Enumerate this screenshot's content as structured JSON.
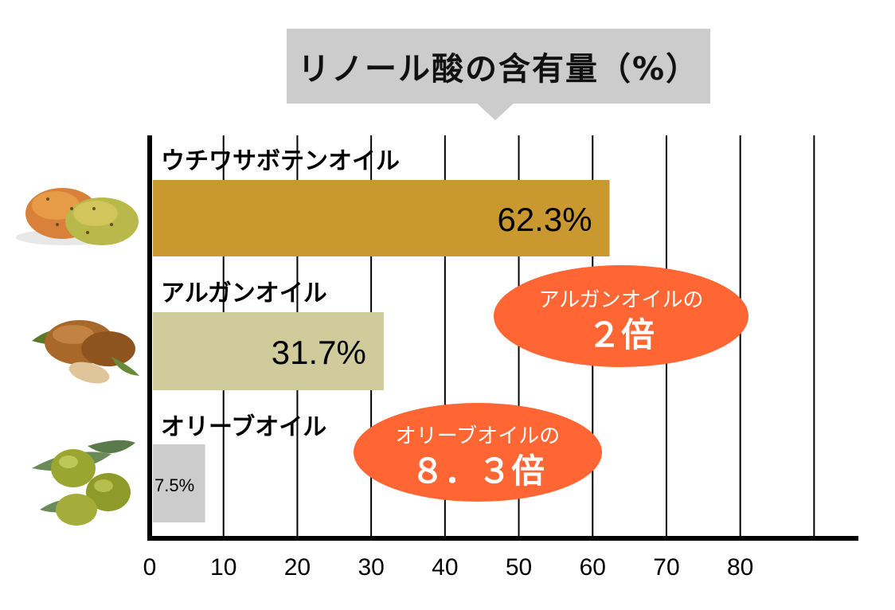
{
  "chart_data": {
    "type": "bar",
    "orientation": "horizontal",
    "title": "リノール酸の含有量（%）",
    "categories": [
      "ウチワサボテンオイル",
      "アルガンオイル",
      "オリーブオイル"
    ],
    "values": [
      62.3,
      31.7,
      7.5
    ],
    "value_labels": [
      "62.3%",
      "31.7%",
      "7.5%"
    ],
    "xticks": [
      "0",
      "10",
      "20",
      "30",
      "40",
      "50",
      "60",
      "70",
      "80"
    ],
    "xlim": [
      0,
      96
    ],
    "grid": true,
    "annotations": [
      {
        "line1": "アルガンオイルの",
        "line2": "２倍"
      },
      {
        "line1": "オリーブオイルの",
        "line2": "８．３倍"
      }
    ]
  },
  "colors": {
    "bars": [
      "#c9982f",
      "#cfcb9a",
      "#cccccc"
    ],
    "bubble": "#ff6633",
    "grid": "#000000",
    "title_box": "#cccccc"
  },
  "icons": [
    "prickly-pear-icon",
    "argan-nut-icon",
    "olive-icon"
  ]
}
